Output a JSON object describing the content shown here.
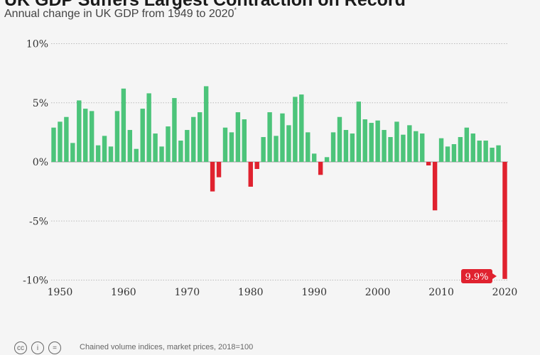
{
  "header": {
    "title": "UK GDP Suffers Largest Contraction on Record",
    "subtitle": "Annual change in UK GDP from 1949 to 2020",
    "subtitle_mark": "*"
  },
  "footer": {
    "note": "Chained volume indices, market prices, 2018=100",
    "icons": [
      "cc-icon",
      "by-icon",
      "nd-icon"
    ]
  },
  "colors": {
    "positive": "#4cc47a",
    "negative": "#e0222f",
    "label_bg": "#e0222f",
    "grid": "#bbbbbb"
  },
  "chart_data": {
    "type": "bar",
    "title": "UK GDP Suffers Largest Contraction on Record",
    "subtitle": "Annual change in UK GDP from 1949 to 2020",
    "x": [
      1949,
      1950,
      1951,
      1952,
      1953,
      1954,
      1955,
      1956,
      1957,
      1958,
      1959,
      1960,
      1961,
      1962,
      1963,
      1964,
      1965,
      1966,
      1967,
      1968,
      1969,
      1970,
      1971,
      1972,
      1973,
      1974,
      1975,
      1976,
      1977,
      1978,
      1979,
      1980,
      1981,
      1982,
      1983,
      1984,
      1985,
      1986,
      1987,
      1988,
      1989,
      1990,
      1991,
      1992,
      1993,
      1994,
      1995,
      1996,
      1997,
      1998,
      1999,
      2000,
      2001,
      2002,
      2003,
      2004,
      2005,
      2006,
      2007,
      2008,
      2009,
      2010,
      2011,
      2012,
      2013,
      2014,
      2015,
      2016,
      2017,
      2018,
      2019,
      2020
    ],
    "values": [
      2.9,
      3.4,
      3.8,
      1.6,
      5.2,
      4.5,
      4.3,
      1.4,
      2.2,
      1.3,
      4.3,
      6.2,
      2.7,
      1.1,
      4.5,
      5.8,
      2.4,
      1.3,
      3.0,
      5.4,
      1.8,
      2.7,
      3.8,
      4.2,
      6.4,
      -2.5,
      -1.3,
      2.9,
      2.5,
      4.2,
      3.6,
      -2.1,
      -0.6,
      2.1,
      4.2,
      2.2,
      4.1,
      3.1,
      5.5,
      5.7,
      2.5,
      0.7,
      -1.1,
      0.4,
      2.5,
      3.8,
      2.7,
      2.4,
      5.1,
      3.6,
      3.3,
      3.5,
      2.7,
      2.1,
      3.4,
      2.3,
      3.1,
      2.6,
      2.4,
      -0.3,
      -4.1,
      2.0,
      1.3,
      1.5,
      2.1,
      2.9,
      2.4,
      1.8,
      1.8,
      1.2,
      1.4,
      -9.9
    ],
    "ylim": [
      -10,
      10
    ],
    "y_ticks": [
      10,
      5,
      0,
      -5,
      -10
    ],
    "y_tick_labels": [
      "10%",
      "5%",
      "0%",
      "-5%",
      "-10%"
    ],
    "x_ticks": [
      1950,
      1960,
      1970,
      1980,
      1990,
      2000,
      2010,
      2020
    ],
    "x_tick_labels": [
      "1950",
      "1960",
      "1970",
      "1980",
      "1990",
      "2000",
      "2010",
      "2020"
    ],
    "grid": true,
    "annotation": {
      "year": 2020,
      "label": "9.9%"
    }
  }
}
